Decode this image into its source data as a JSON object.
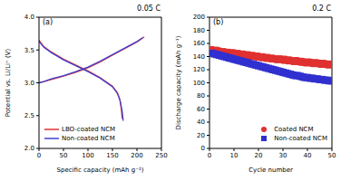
{
  "chart_data": [
    {
      "type": "line",
      "annotations": [
        "(a)",
        "0.05 C"
      ],
      "x_label": "Specific capacity (mAh g⁻¹)",
      "y_label": "Potential vs. Li/Li⁺ (V)",
      "xlim": [
        0,
        250
      ],
      "xticks": [
        0,
        50,
        100,
        150,
        200,
        250
      ],
      "ylim": [
        2.0,
        4.0
      ],
      "yticks": [
        {
          "value": 2.0,
          "label": "2.0"
        },
        2.5,
        {
          "value": 3.0,
          "label": "3.0"
        },
        3.5,
        {
          "value": 4.0,
          "label": "4.0"
        }
      ],
      "grid": false,
      "legend": "lower left",
      "series": [
        {
          "name": "LBO-coated NCM",
          "color": "#e03030",
          "line_style": "solid",
          "curves": [
            {
              "x": [
                0,
                10,
                25,
                50,
                75,
                100,
                125,
                150,
                175,
                200,
                215
              ],
              "values": [
                3.0,
                3.02,
                3.05,
                3.1,
                3.16,
                3.23,
                3.32,
                3.42,
                3.52,
                3.62,
                3.7
              ]
            },
            {
              "x": [
                0,
                10,
                25,
                50,
                75,
                100,
                125,
                150,
                160,
                165,
                168,
                170
              ],
              "values": [
                3.65,
                3.55,
                3.47,
                3.36,
                3.27,
                3.18,
                3.08,
                2.95,
                2.85,
                2.75,
                2.6,
                2.45
              ]
            }
          ]
        },
        {
          "name": "Non-coated NCM",
          "color": "#4040d0",
          "line_style": "solid",
          "curves": [
            {
              "x": [
                0,
                10,
                25,
                50,
                75,
                100,
                125,
                150,
                175,
                200,
                212
              ],
              "values": [
                3.0,
                3.02,
                3.06,
                3.11,
                3.17,
                3.24,
                3.33,
                3.43,
                3.53,
                3.63,
                3.69
              ]
            },
            {
              "x": [
                0,
                10,
                25,
                50,
                75,
                100,
                125,
                150,
                160,
                166,
                170,
                172
              ],
              "values": [
                3.63,
                3.54,
                3.46,
                3.35,
                3.26,
                3.17,
                3.07,
                2.94,
                2.84,
                2.72,
                2.56,
                2.42
              ]
            }
          ]
        }
      ]
    },
    {
      "type": "scatter",
      "annotations": [
        "(b)",
        "0.2 C"
      ],
      "x_label": "Cycle number",
      "y_label": "Discharge capacity (mAh g⁻¹)",
      "xlim": [
        0,
        50
      ],
      "xticks": [
        0,
        10,
        20,
        30,
        40,
        50
      ],
      "ylim": [
        0,
        200
      ],
      "yticks": [
        0,
        20,
        40,
        60,
        80,
        100,
        120,
        140,
        160,
        180,
        200
      ],
      "grid": false,
      "legend": "lower right",
      "x": [
        1,
        2,
        3,
        4,
        5,
        6,
        7,
        8,
        9,
        10,
        11,
        12,
        13,
        14,
        15,
        16,
        17,
        18,
        19,
        20,
        21,
        22,
        23,
        24,
        25,
        26,
        27,
        28,
        29,
        30,
        31,
        32,
        33,
        34,
        35,
        36,
        37,
        38,
        39,
        40,
        41,
        42,
        43,
        44,
        45,
        46,
        47,
        48,
        49,
        50
      ],
      "series": [
        {
          "name": "Coated NCM",
          "color": "#e03030",
          "marker": "circle",
          "values": [
            150,
            149,
            149,
            148,
            147,
            147,
            146,
            146,
            145,
            145,
            144,
            144,
            143,
            143,
            142,
            142,
            141,
            141,
            140,
            140,
            139,
            139,
            138,
            138,
            137,
            137,
            136,
            136,
            136,
            135,
            135,
            134,
            134,
            133,
            133,
            133,
            132,
            132,
            131,
            131,
            131,
            130,
            130,
            130,
            129,
            129,
            129,
            128,
            128,
            128
          ]
        },
        {
          "name": "Non-coated NCM",
          "color": "#3030d0",
          "marker": "square",
          "values": [
            145,
            144,
            143,
            142,
            141,
            140,
            139,
            138,
            137,
            136,
            135,
            134,
            133,
            132,
            131,
            130,
            129,
            128,
            127,
            126,
            125,
            124,
            123,
            122,
            121,
            120,
            119,
            118,
            117,
            116,
            115,
            114,
            113,
            112,
            111,
            111,
            110,
            109,
            108,
            108,
            107,
            107,
            106,
            106,
            105,
            105,
            104,
            104,
            103,
            103
          ]
        }
      ]
    }
  ]
}
